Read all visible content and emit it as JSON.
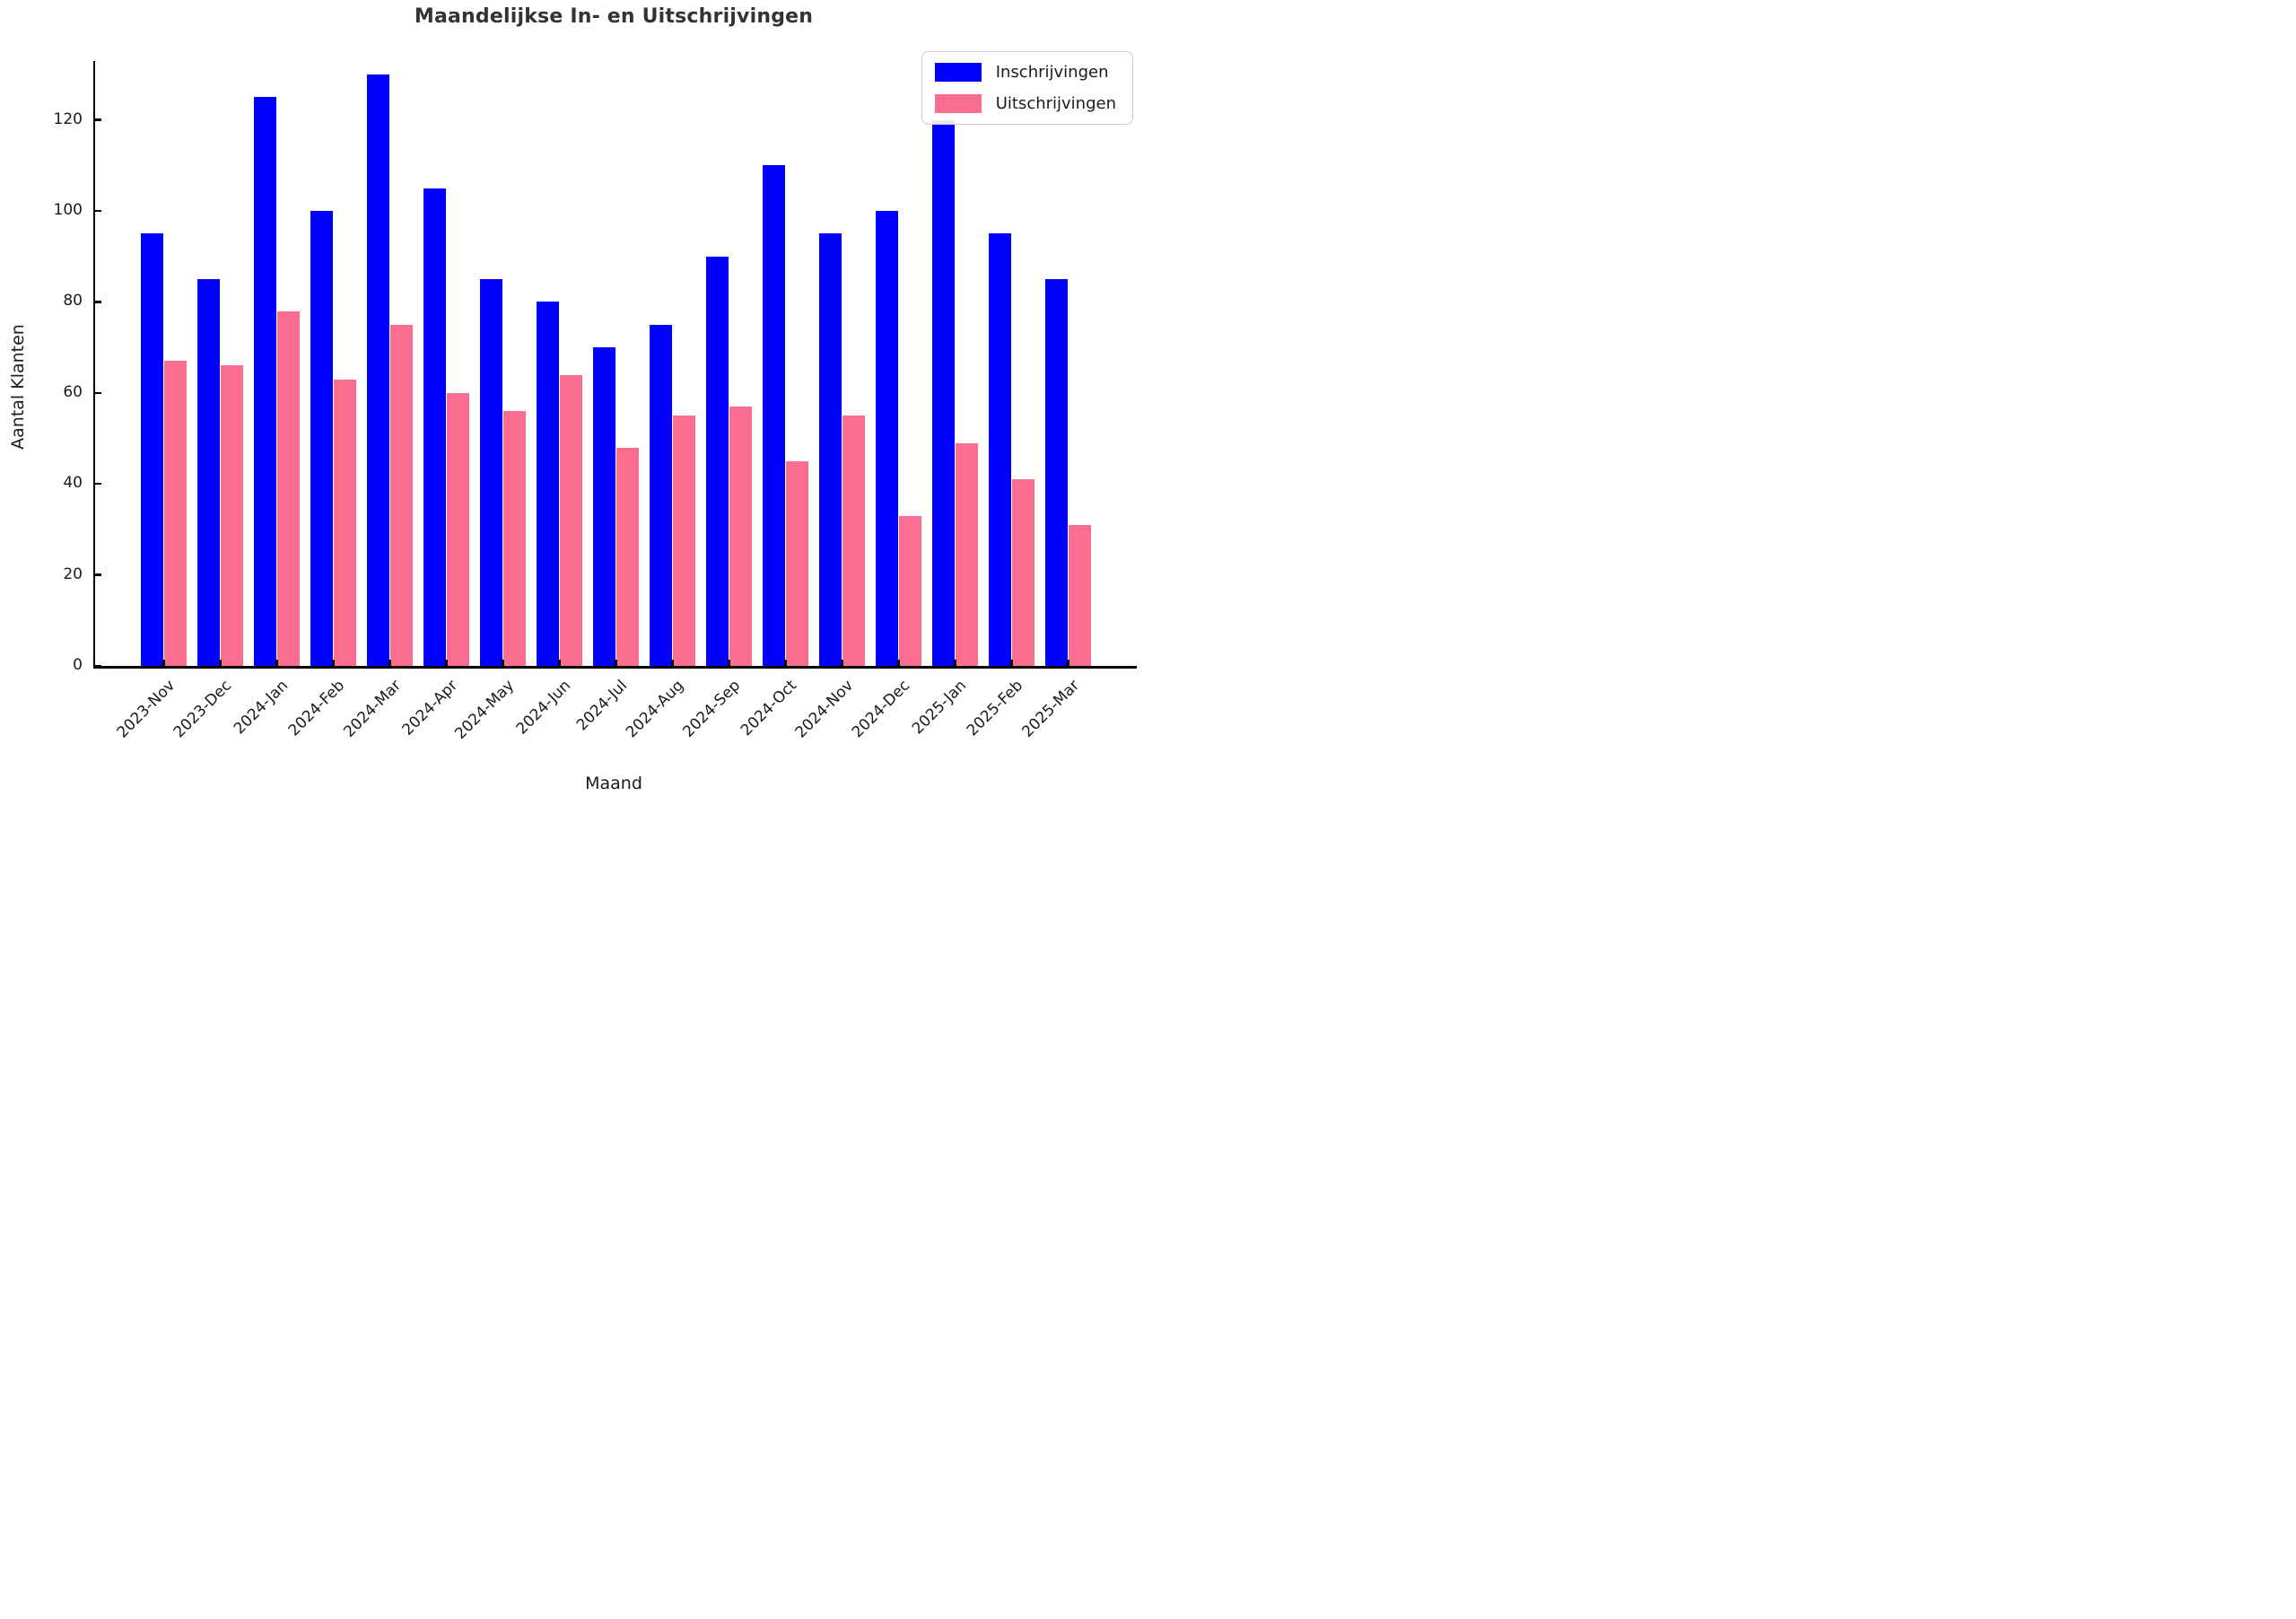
{
  "figure": {
    "title": "Maandelijkse In- en Uitschrijvingen"
  },
  "chart_data": {
    "type": "bar",
    "title": "Maandelijkse In- en Uitschrijvingen",
    "xlabel": "Maand",
    "ylabel": "Aantal Klanten",
    "categories": [
      "2023-Nov",
      "2023-Dec",
      "2024-Jan",
      "2024-Feb",
      "2024-Mar",
      "2024-Apr",
      "2024-May",
      "2024-Jun",
      "2024-Jul",
      "2024-Aug",
      "2024-Sep",
      "2024-Oct",
      "2024-Nov",
      "2024-Dec",
      "2025-Jan",
      "2025-Feb",
      "2025-Mar"
    ],
    "series": [
      {
        "name": "Inschrijvingen",
        "color": "#0000FF",
        "values": [
          95,
          85,
          125,
          100,
          130,
          105,
          85,
          80,
          70,
          75,
          90,
          110,
          95,
          100,
          120,
          95,
          85
        ]
      },
      {
        "name": "Uitschrijvingen",
        "color": "#FC6E90",
        "values": [
          67,
          66,
          78,
          63,
          75,
          60,
          56,
          64,
          48,
          55,
          57,
          45,
          55,
          33,
          49,
          41,
          31
        ]
      }
    ],
    "yticks": [
      0,
      20,
      40,
      60,
      80,
      100,
      120
    ],
    "ylim": [
      0,
      132
    ],
    "grid": false,
    "legend_position": "upper right",
    "x_tick_rotation": 45,
    "bar_layout": "grouped",
    "spines": [
      "left",
      "bottom"
    ]
  }
}
